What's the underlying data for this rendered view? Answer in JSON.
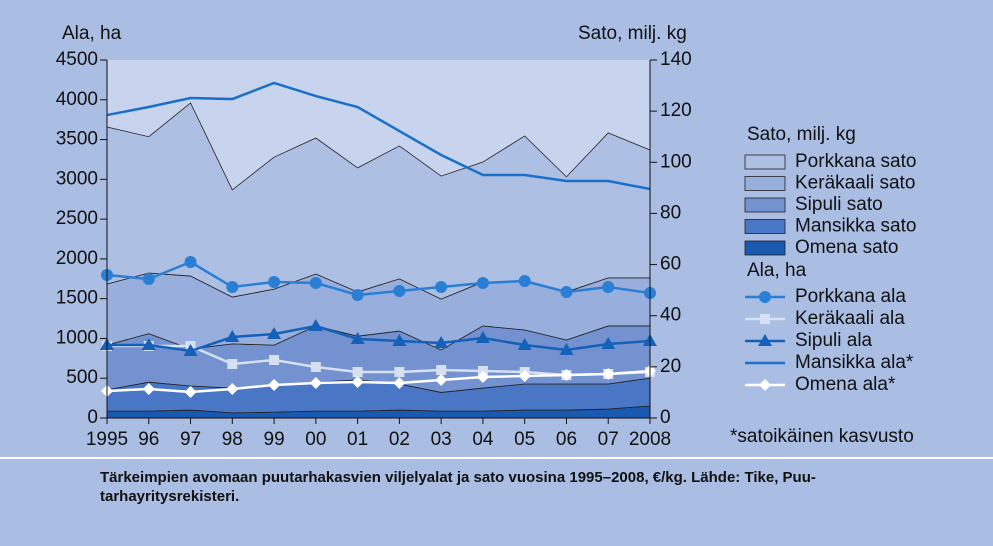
{
  "chart_data": {
    "type": "combo",
    "ylabel": "Ala, ha",
    "y2label": "Sato, milj. kg",
    "categories": [
      "1995",
      "96",
      "97",
      "98",
      "99",
      "00",
      "01",
      "02",
      "03",
      "04",
      "05",
      "06",
      "07",
      "2008"
    ],
    "ylim": [
      0,
      4500
    ],
    "yticks": [
      0,
      500,
      1000,
      1500,
      2000,
      2500,
      3000,
      3500,
      4000,
      4500
    ],
    "y2lim": [
      0,
      140
    ],
    "y2ticks": [
      0,
      20,
      40,
      60,
      80,
      100,
      120,
      140
    ],
    "area_series": [
      {
        "name": "Porkkana sato",
        "color": "#adbfe3",
        "axis": "y2",
        "values": [
          61.4,
          53.3,
          67.7,
          41.9,
          51.6,
          53.2,
          48.5,
          52.0,
          48.1,
          46.9,
          57.1,
          45.0,
          56.7,
          50.0
        ]
      },
      {
        "name": "Keräkaali sato",
        "color": "#98aedd",
        "axis": "y2",
        "values": [
          23.9,
          23.7,
          28.5,
          18.3,
          21.9,
          20.3,
          17.3,
          20.4,
          19.9,
          17.2,
          18.8,
          18.8,
          18.8,
          18.8
        ]
      },
      {
        "name": "Sipuli sato",
        "color": "#7392cf",
        "axis": "y2",
        "values": [
          17.5,
          19.0,
          14.5,
          17.3,
          16.0,
          22.0,
          17.1,
          20.7,
          16.6,
          24.3,
          21.1,
          17.2,
          22.7,
          20.4
        ]
      },
      {
        "name": "Mansikka sato",
        "color": "#4a77c5",
        "axis": "y2",
        "values": [
          8.3,
          11.3,
          9.4,
          9.7,
          10.2,
          11.3,
          12.2,
          10.2,
          7.3,
          9.0,
          10.2,
          10.2,
          9.8,
          10.9
        ]
      },
      {
        "name": "Omena sato",
        "color": "#1a59b0",
        "axis": "y2",
        "values": [
          2.7,
          2.7,
          3.1,
          2.0,
          2.3,
          2.7,
          2.7,
          3.1,
          2.7,
          2.7,
          3.1,
          3.1,
          3.5,
          4.7
        ]
      }
    ],
    "line_series": [
      {
        "name": "Porkkana ala",
        "color": "#2a7fd4",
        "marker": "circle",
        "values": [
          1797,
          1747,
          1961,
          1647,
          1709,
          1697,
          1546,
          1596,
          1647,
          1697,
          1722,
          1584,
          1647,
          1571
        ]
      },
      {
        "name": "Keräkaali ala",
        "color": "#d6e0f3",
        "marker": "square",
        "values": [
          905,
          905,
          905,
          679,
          729,
          641,
          578,
          578,
          603,
          591,
          578,
          540,
          553,
          578
        ]
      },
      {
        "name": "Sipuli ala",
        "color": "#1560b8",
        "marker": "triangle",
        "values": [
          918,
          918,
          842,
          1018,
          1056,
          1156,
          993,
          968,
          943,
          1006,
          918,
          855,
          930,
          968
        ]
      },
      {
        "name": "Mansikka ala*",
        "color": "#1a70c8",
        "marker": "none",
        "values": [
          3808,
          3909,
          4022,
          4009,
          4211,
          4047,
          3909,
          3607,
          3306,
          3054,
          3054,
          2979,
          2979,
          2878
        ]
      },
      {
        "name": "Omena ala*",
        "color": "#ffffff",
        "marker": "diamond",
        "values": [
          339,
          365,
          327,
          365,
          415,
          440,
          452,
          440,
          478,
          515,
          528,
          540,
          553,
          591
        ]
      }
    ],
    "footnote": "*satoikäinen kasvusto",
    "caption": [
      "Tärkeimpien avomaan puutarhakasvien viljelyalat ja sato vuosina 1995–2008, €/kg. Lähde: Tike, Puu-",
      "tarhayritysrekisteri."
    ]
  }
}
